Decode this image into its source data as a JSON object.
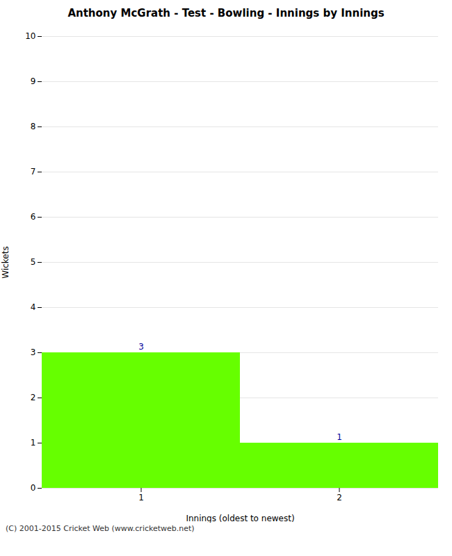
{
  "chart_data": {
    "type": "bar",
    "title": "Anthony McGrath - Test - Bowling - Innings by Innings",
    "xlabel": "Innings (oldest to newest)",
    "ylabel": "Wickets",
    "categories": [
      1,
      2
    ],
    "values": [
      3,
      1
    ],
    "color": "#66ff00",
    "ylim": [
      0,
      10
    ],
    "yticks": [
      0,
      1,
      2,
      3,
      4,
      5,
      6,
      7,
      8,
      9,
      10
    ],
    "grid": true,
    "data_labels": true,
    "caption": "(C) 2001-2015 Cricket Web (www.cricketweb.net)"
  }
}
